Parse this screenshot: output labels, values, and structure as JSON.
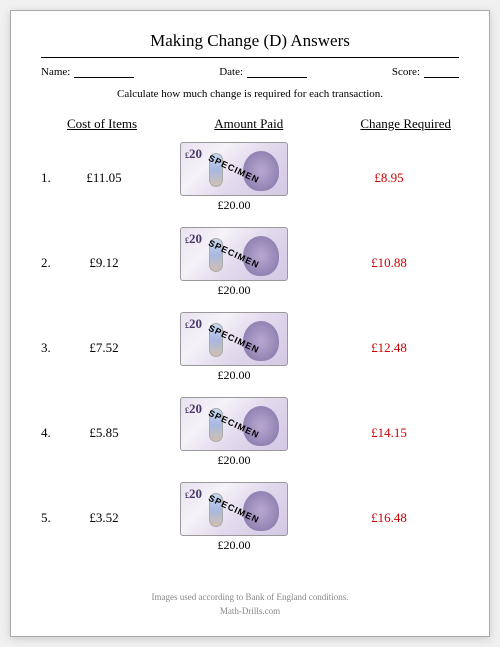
{
  "page": {
    "title": "Making Change (D) Answers",
    "meta": {
      "name_label": "Name:",
      "date_label": "Date:",
      "score_label": "Score:"
    },
    "instructions": "Calculate how much change is required for each transaction.",
    "columns": {
      "cost": "Cost of Items",
      "paid": "Amount Paid",
      "change": "Change Required"
    },
    "banknote": {
      "currency": "£",
      "denomination": "20",
      "specimen": "SPECIMEN",
      "colors": {
        "bg_light": "#f5f2f8",
        "bg_dark": "#d4c8e4",
        "portrait": "#9888b8"
      }
    },
    "problems": [
      {
        "n": "1.",
        "cost": "£11.05",
        "paid": "£20.00",
        "change": "£8.95"
      },
      {
        "n": "2.",
        "cost": "£9.12",
        "paid": "£20.00",
        "change": "£10.88"
      },
      {
        "n": "3.",
        "cost": "£7.52",
        "paid": "£20.00",
        "change": "£12.48"
      },
      {
        "n": "4.",
        "cost": "£5.85",
        "paid": "£20.00",
        "change": "£14.15"
      },
      {
        "n": "5.",
        "cost": "£3.52",
        "paid": "£20.00",
        "change": "£16.48"
      }
    ],
    "footer": {
      "line1": "Images used according to Bank of England conditions.",
      "line2": "Math-Drills.com"
    },
    "styling": {
      "answer_color": "#cc0000",
      "text_color": "#000000",
      "footer_color": "#888888",
      "page_bg": "#ffffff",
      "body_font_family": "Times New Roman",
      "title_fontsize": 17,
      "body_fontsize": 13,
      "meta_fontsize": 11,
      "footer_fontsize": 9
    }
  }
}
